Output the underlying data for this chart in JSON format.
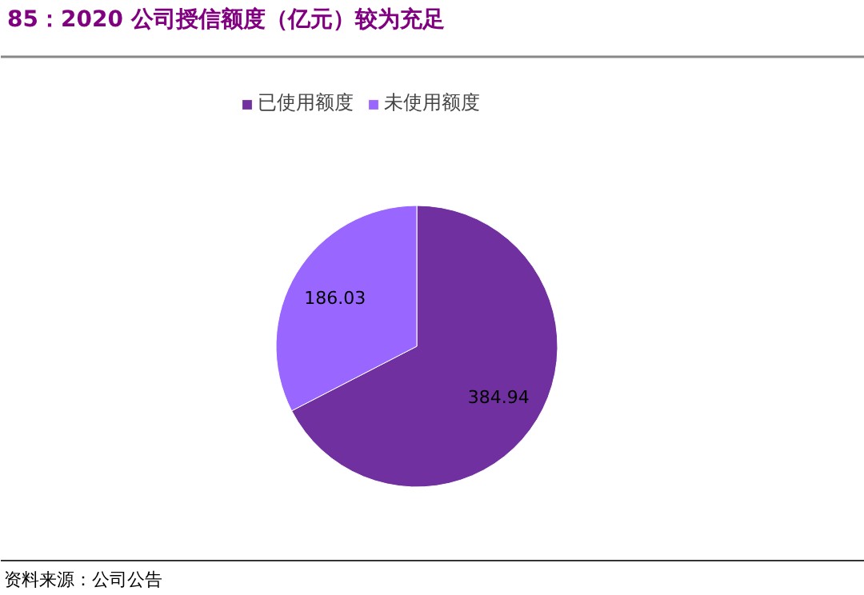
{
  "chart_data": {
    "type": "pie",
    "title": "85：2020 公司授信额度（亿元）较为充足",
    "categories": [
      "已使用额度",
      "未使用额度"
    ],
    "values": [
      384.94,
      186.03
    ],
    "colors": [
      "#7030a0",
      "#9966ff"
    ],
    "data_labels": true,
    "legend": "top",
    "annotations": [
      "资料来源：公司公告"
    ]
  }
}
